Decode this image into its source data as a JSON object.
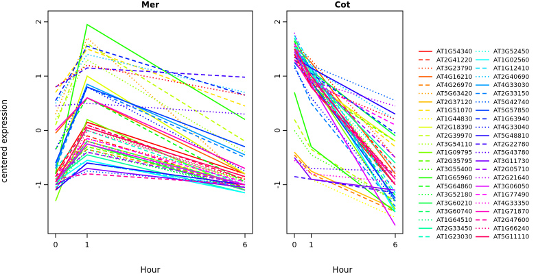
{
  "chart_data": {
    "type": "line",
    "ylabel": "centered expression",
    "xlabel": "Hour",
    "x": [
      "0",
      "1",
      "6"
    ],
    "ylim": [
      -1.9,
      2.2
    ],
    "yticks": [
      -1,
      0,
      1,
      2
    ],
    "grid": false,
    "legend_placement": "right",
    "panels": [
      {
        "title": "Mer",
        "values": [
          [
            -0.8,
            0.15,
            -0.8
          ],
          [
            -1.1,
            -0.1,
            -1.05
          ],
          [
            -0.9,
            -0.15,
            -0.9
          ],
          [
            -0.05,
            0.6,
            -0.8
          ],
          [
            -0.75,
            -0.35,
            -1.0
          ],
          [
            0.3,
            1.7,
            -0.9
          ],
          [
            -0.95,
            -0.2,
            -1.0
          ],
          [
            0.7,
            1.5,
            0.45
          ],
          [
            -0.85,
            -0.3,
            -0.9
          ],
          [
            -0.7,
            1.0,
            -0.8
          ],
          [
            0.1,
            1.6,
            -0.2
          ],
          [
            0.2,
            1.3,
            -0.4
          ],
          [
            -1.3,
            0.2,
            -1.1
          ],
          [
            -0.9,
            -0.3,
            -1.0
          ],
          [
            -1.0,
            0.05,
            -0.95
          ],
          [
            -0.8,
            1.95,
            0.2
          ],
          [
            -0.35,
            0.6,
            -0.95
          ],
          [
            -0.9,
            -0.4,
            -1.05
          ],
          [
            -1.0,
            -0.25,
            -1.1
          ],
          [
            -0.95,
            -0.2,
            -1.0
          ],
          [
            -1.05,
            -0.35,
            -1.1
          ],
          [
            -0.9,
            -0.45,
            -1.15
          ],
          [
            -0.7,
            0.0,
            -1.0
          ],
          [
            -0.65,
            -0.6,
            -1.05
          ],
          [
            -0.95,
            -0.55,
            -1.15
          ],
          [
            -1.05,
            -0.6,
            -1.05
          ],
          [
            0.5,
            1.4,
            0.7
          ],
          [
            -0.65,
            0.85,
            -0.45
          ],
          [
            -0.7,
            0.8,
            -0.5
          ],
          [
            -1.0,
            -0.75,
            -1.0
          ],
          [
            -0.6,
            0.8,
            -0.3
          ],
          [
            0.55,
            1.55,
            0.65
          ],
          [
            -0.35,
            0.8,
            -0.75
          ],
          [
            -1.1,
            -0.6,
            -1.0
          ],
          [
            0.8,
            1.15,
            0.98
          ],
          [
            0.45,
            0.5,
            0.3
          ],
          [
            -1.0,
            -0.7,
            -1.05
          ],
          [
            -0.85,
            -0.4,
            -1.0
          ],
          [
            -0.95,
            -0.2,
            -1.1
          ],
          [
            -0.95,
            -0.25,
            -1.0
          ],
          [
            -0.85,
            -0.15,
            -0.95
          ],
          [
            -1.0,
            0.1,
            -1.0
          ],
          [
            0.0,
            0.6,
            -0.7
          ],
          [
            -0.9,
            -0.8,
            -1.0
          ],
          [
            -1.1,
            0.0,
            -0.9
          ],
          [
            -0.95,
            0.05,
            -0.85
          ],
          [
            -0.85,
            0.1,
            -0.9
          ],
          [
            0.8,
            1.2,
            0.65
          ]
        ]
      },
      {
        "title": "Cot",
        "values": [
          [
            1.5,
            0.8,
            -1.0
          ],
          [
            1.45,
            1.1,
            -0.7
          ],
          [
            1.6,
            1.3,
            -0.5
          ],
          [
            1.55,
            1.25,
            -0.8
          ],
          [
            -0.45,
            -0.8,
            -1.5
          ],
          [
            1.35,
            1.1,
            -1.0
          ],
          [
            -0.4,
            -0.75,
            -1.45
          ],
          [
            1.5,
            0.95,
            -0.3
          ],
          [
            -0.5,
            -0.9,
            -1.6
          ],
          [
            1.4,
            0.9,
            -0.2
          ],
          [
            0.2,
            -0.35,
            -1.3
          ],
          [
            1.3,
            1.05,
            -0.9
          ],
          [
            1.55,
            0.9,
            -1.45
          ],
          [
            1.4,
            0.8,
            -0.2
          ],
          [
            0.0,
            -0.45,
            -1.3
          ],
          [
            0.7,
            -0.3,
            -1.5
          ],
          [
            1.65,
            0.9,
            -1.0
          ],
          [
            1.6,
            0.95,
            -0.9
          ],
          [
            1.7,
            1.1,
            -0.1
          ],
          [
            1.45,
            1.0,
            -1.2
          ],
          [
            1.5,
            0.85,
            -1.0
          ],
          [
            1.6,
            1.0,
            -0.6
          ],
          [
            1.7,
            1.05,
            -1.3
          ],
          [
            1.45,
            0.95,
            -0.7
          ],
          [
            1.55,
            1.1,
            -1.5
          ],
          [
            1.75,
            1.2,
            -1.15
          ],
          [
            1.4,
            1.15,
            0.2
          ],
          [
            1.5,
            1.15,
            -1.3
          ],
          [
            1.2,
            0.5,
            -1.4
          ],
          [
            1.4,
            1.2,
            0.55
          ],
          [
            1.25,
            0.9,
            -1.25
          ],
          [
            1.3,
            1.05,
            -0.05
          ],
          [
            1.15,
            0.6,
            -1.3
          ],
          [
            1.35,
            1.15,
            0.3
          ],
          [
            -0.85,
            -0.9,
            -1.15
          ],
          [
            -0.55,
            -0.7,
            -0.75
          ],
          [
            -0.5,
            -0.9,
            -1.1
          ],
          [
            1.5,
            1.0,
            -0.5
          ],
          [
            1.8,
            0.9,
            0.45
          ],
          [
            1.45,
            0.85,
            -1.75
          ],
          [
            1.6,
            0.9,
            0.1
          ],
          [
            -0.55,
            -0.8,
            -0.95
          ],
          [
            1.3,
            0.8,
            -0.9
          ],
          [
            1.5,
            0.95,
            -0.9
          ],
          [
            1.55,
            0.9,
            -1.0
          ],
          [
            1.5,
            1.0,
            -1.0
          ],
          [
            1.4,
            0.8,
            -0.85
          ],
          [
            1.35,
            0.85,
            0.2
          ]
        ]
      }
    ],
    "series": [
      {
        "name": "AT1G54340",
        "color": "#FF0000",
        "dash": "solid"
      },
      {
        "name": "AT2G41220",
        "color": "#FF1F00",
        "dash": "dashed"
      },
      {
        "name": "AT3G23790",
        "color": "#FF3F00",
        "dash": "dotted"
      },
      {
        "name": "AT4G16210",
        "color": "#FF5F00",
        "dash": "solid"
      },
      {
        "name": "AT4G26970",
        "color": "#FF7F00",
        "dash": "dashed"
      },
      {
        "name": "AT5G63420",
        "color": "#FF9F00",
        "dash": "dotted"
      },
      {
        "name": "AT2G37120",
        "color": "#FFBF00",
        "dash": "solid"
      },
      {
        "name": "AT1G51070",
        "color": "#FFDF00",
        "dash": "dashed"
      },
      {
        "name": "AT1G44830",
        "color": "#FFFF00",
        "dash": "dotted"
      },
      {
        "name": "AT2G18390",
        "color": "#DFFF00",
        "dash": "solid"
      },
      {
        "name": "AT2G39970",
        "color": "#BFFF00",
        "dash": "dashed"
      },
      {
        "name": "AT3G54110",
        "color": "#9FFF00",
        "dash": "dotted"
      },
      {
        "name": "AT1G09795",
        "color": "#7FFF00",
        "dash": "solid"
      },
      {
        "name": "AT2G35795",
        "color": "#5FFF00",
        "dash": "dashed"
      },
      {
        "name": "AT3G55400",
        "color": "#3FFF00",
        "dash": "dotted"
      },
      {
        "name": "AT1G65960",
        "color": "#1FFF00",
        "dash": "solid"
      },
      {
        "name": "AT5G64860",
        "color": "#00FF00",
        "dash": "dashed"
      },
      {
        "name": "AT3G52180",
        "color": "#00FF1F",
        "dash": "dotted"
      },
      {
        "name": "AT3G60210",
        "color": "#00FF3F",
        "dash": "solid"
      },
      {
        "name": "AT3G60740",
        "color": "#00FF5F",
        "dash": "dashed"
      },
      {
        "name": "AT1G64510",
        "color": "#00FF7F",
        "dash": "dotted"
      },
      {
        "name": "AT2G33450",
        "color": "#00FF9F",
        "dash": "solid"
      },
      {
        "name": "AT1G23030",
        "color": "#00FFBF",
        "dash": "dashed"
      },
      {
        "name": "AT3G52450",
        "color": "#00FFDF",
        "dash": "dotted"
      },
      {
        "name": "AT1G02560",
        "color": "#00FFFF",
        "dash": "solid"
      },
      {
        "name": "AT1G12410",
        "color": "#00DFFF",
        "dash": "dashed"
      },
      {
        "name": "AT2G40690",
        "color": "#00BFFF",
        "dash": "dotted"
      },
      {
        "name": "AT4G33030",
        "color": "#009FFF",
        "dash": "solid"
      },
      {
        "name": "AT2G33150",
        "color": "#007FFF",
        "dash": "dashed"
      },
      {
        "name": "AT5G42740",
        "color": "#005FFF",
        "dash": "dotted"
      },
      {
        "name": "AT5G57850",
        "color": "#003FFF",
        "dash": "solid"
      },
      {
        "name": "AT1G63940",
        "color": "#001FFF",
        "dash": "dashed"
      },
      {
        "name": "AT4G33040",
        "color": "#0000FF",
        "dash": "dotted"
      },
      {
        "name": "AT5G48810",
        "color": "#1F00FF",
        "dash": "solid"
      },
      {
        "name": "AT2G22780",
        "color": "#3F00FF",
        "dash": "dashed"
      },
      {
        "name": "AT5G43780",
        "color": "#5F00FF",
        "dash": "dotted"
      },
      {
        "name": "AT3G11730",
        "color": "#7F00FF",
        "dash": "solid"
      },
      {
        "name": "AT2G05710",
        "color": "#9F00FF",
        "dash": "dashed"
      },
      {
        "name": "AT2G21640",
        "color": "#BF00FF",
        "dash": "dotted"
      },
      {
        "name": "AT3G06050",
        "color": "#DF00FF",
        "dash": "solid"
      },
      {
        "name": "AT1G77490",
        "color": "#FF00FF",
        "dash": "dashed"
      },
      {
        "name": "AT4G33350",
        "color": "#FF00DF",
        "dash": "dotted"
      },
      {
        "name": "AT1G71870",
        "color": "#FF00BF",
        "dash": "solid"
      },
      {
        "name": "AT2G47600",
        "color": "#FF009F",
        "dash": "dashed"
      },
      {
        "name": "AT1G66240",
        "color": "#FF007F",
        "dash": "dotted"
      },
      {
        "name": "AT5G11110",
        "color": "#FF005F",
        "dash": "solid"
      },
      {
        "name": "",
        "color": "#FF003F",
        "dash": "dashed"
      },
      {
        "name": "",
        "color": "#FF001F",
        "dash": "dotted"
      }
    ],
    "legend_rows": 23
  }
}
